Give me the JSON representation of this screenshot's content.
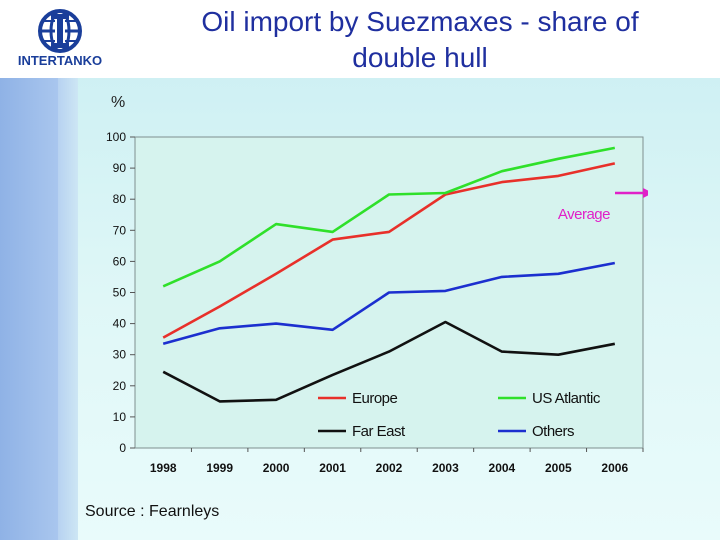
{
  "slide": {
    "title_line1": "Oil import by Suezmaxes - share of",
    "title_line2": "double hull",
    "logo_text": "INTERTANKO",
    "y_unit": "%",
    "source": "Source : Fearnleys"
  },
  "colors": {
    "europe": "#e8302a",
    "us_atlantic": "#2fe02a",
    "far_east": "#111111",
    "others": "#1c2fcf",
    "average_arrow": "#e020c8",
    "title": "#1f2f9f"
  },
  "chart_data": {
    "type": "line",
    "title": "Oil import by Suezmaxes - share of double hull",
    "xlabel": "",
    "ylabel": "%",
    "ylim": [
      0,
      100
    ],
    "yticks": [
      0,
      10,
      20,
      30,
      40,
      50,
      60,
      70,
      80,
      90,
      100
    ],
    "categories": [
      "1998",
      "1999",
      "2000",
      "2001",
      "2002",
      "2003",
      "2004",
      "2005",
      "2006"
    ],
    "series": [
      {
        "name": "Europe",
        "color": "#e8302a",
        "values": [
          35.5,
          45.5,
          56,
          67,
          69.5,
          81.5,
          85.5,
          87.5,
          91.5
        ]
      },
      {
        "name": "US Atlantic",
        "color": "#2fe02a",
        "values": [
          52,
          60,
          72,
          69.5,
          81.5,
          82,
          89,
          93,
          96.5
        ]
      },
      {
        "name": "Far East",
        "color": "#111111",
        "values": [
          24.5,
          15,
          15.5,
          23.5,
          31,
          40.5,
          31,
          30,
          33.5
        ]
      },
      {
        "name": "Others",
        "color": "#1c2fcf",
        "values": [
          33.5,
          38.5,
          40,
          38,
          50,
          50.5,
          55,
          56,
          59.5
        ]
      }
    ],
    "annotation": {
      "text": "Average",
      "value": 82,
      "color": "#e020c8"
    },
    "legend": {
      "position": "bottom-inside",
      "entries": [
        "Europe",
        "US Atlantic",
        "Far East",
        "Others"
      ]
    }
  }
}
